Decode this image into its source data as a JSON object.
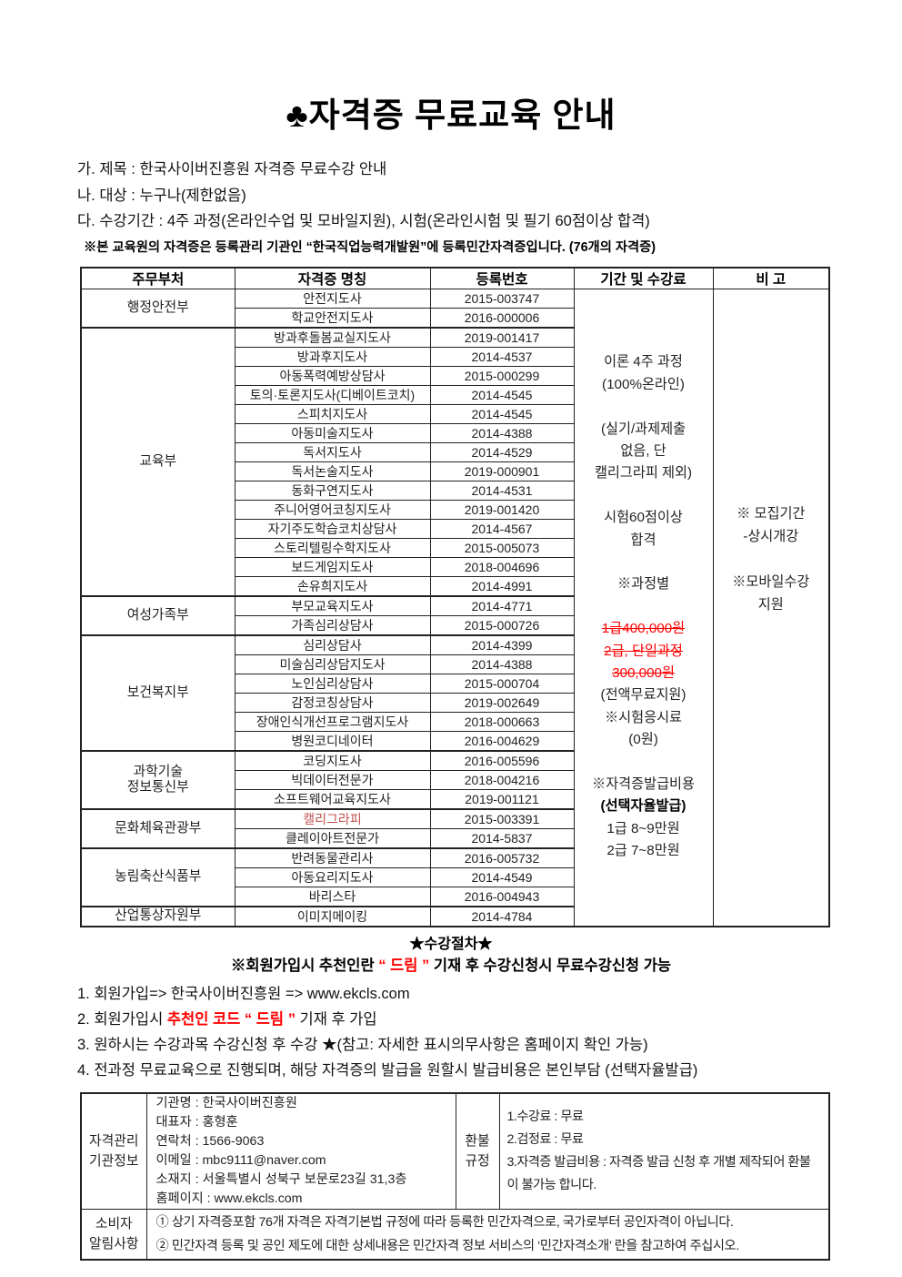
{
  "page": {
    "title_symbol": "♣",
    "title_text": "자격증 무료교육 안내"
  },
  "intro": {
    "lines": [
      "가. 제목 : 한국사이버진흥원 자격증 무료수강 안내",
      "나. 대상 : 누구나(제한없음)",
      "다. 수강기간 : 4주 과정(온라인수업 및 모바일지원), 시험(온라인시험 및 필기 60점이상 합격)"
    ],
    "notice": "※본 교육원의 자격증은 등록관리 기관인 “한국직업능력개발원”에 등록민간자격증입니다. (76개의 자격증)"
  },
  "cert_table": {
    "headers": [
      "주무부처",
      "자격증 명칭",
      "등록번호",
      "기간 및 수강료",
      "비 고"
    ],
    "groups": [
      {
        "ministry": [
          "행정안전부"
        ],
        "rows": [
          {
            "name": "안전지도사",
            "reg": "2015-003747"
          },
          {
            "name": "학교안전지도사",
            "reg": "2016-000006"
          }
        ]
      },
      {
        "ministry": [
          "교육부"
        ],
        "rows": [
          {
            "name": "방과후돌봄교실지도사",
            "reg": "2019-001417"
          },
          {
            "name": "방과후지도사",
            "reg": "2014-4537"
          },
          {
            "name": "아동폭력예방상담사",
            "reg": "2015-000299"
          },
          {
            "name": "토의·토론지도사(디베이트코치)",
            "reg": "2014-4545"
          },
          {
            "name": "스피치지도사",
            "reg": "2014-4545"
          },
          {
            "name": "아동미술지도사",
            "reg": "2014-4388"
          },
          {
            "name": "독서지도사",
            "reg": "2014-4529"
          },
          {
            "name": "독서논술지도사",
            "reg": "2019-000901"
          },
          {
            "name": "동화구연지도사",
            "reg": "2014-4531"
          },
          {
            "name": "주니어영어코칭지도사",
            "reg": "2019-001420"
          },
          {
            "name": "자기주도학습코치상담사",
            "reg": "2014-4567"
          },
          {
            "name": "스토리텔링수학지도사",
            "reg": "2015-005073"
          },
          {
            "name": "보드게임지도사",
            "reg": "2018-004696"
          },
          {
            "name": "손유희지도사",
            "reg": "2014-4991"
          }
        ]
      },
      {
        "ministry": [
          "여성가족부"
        ],
        "rows": [
          {
            "name": "부모교육지도사",
            "reg": "2014-4771"
          },
          {
            "name": "가족심리상담사",
            "reg": "2015-000726"
          }
        ]
      },
      {
        "ministry": [
          "보건복지부"
        ],
        "rows": [
          {
            "name": "심리상담사",
            "reg": "2014-4399"
          },
          {
            "name": "미술심리상담지도사",
            "reg": "2014-4388"
          },
          {
            "name": "노인심리상담사",
            "reg": "2015-000704"
          },
          {
            "name": "감정코칭상담사",
            "reg": "2019-002649"
          },
          {
            "name": "장애인식개선프로그램지도사",
            "reg": "2018-000663"
          },
          {
            "name": "병원코디네이터",
            "reg": "2016-004629"
          }
        ]
      },
      {
        "ministry": [
          "과학기술",
          "정보통신부"
        ],
        "rows": [
          {
            "name": "코딩지도사",
            "reg": "2016-005596"
          },
          {
            "name": "빅데이터전문가",
            "reg": "2018-004216"
          },
          {
            "name": "소프트웨어교육지도사",
            "reg": "2019-001121"
          }
        ]
      },
      {
        "ministry": [
          "문화체육관광부"
        ],
        "rows": [
          {
            "name": "캘리그라피",
            "reg": "2015-003391",
            "red": true
          },
          {
            "name": "클레이아트전문가",
            "reg": "2014-5837"
          }
        ]
      },
      {
        "ministry": [
          "농림축산식품부"
        ],
        "rows": [
          {
            "name": "반려동물관리사",
            "reg": "2016-005732"
          },
          {
            "name": "아동요리지도사",
            "reg": "2014-4549"
          },
          {
            "name": "바리스타",
            "reg": "2016-004943"
          }
        ]
      },
      {
        "ministry": [
          "산업통상자원부"
        ],
        "rows": [
          {
            "name": "이미지메이킹",
            "reg": "2014-4784"
          }
        ]
      }
    ],
    "fee_lines": [
      {
        "t": "이론 4주 과정"
      },
      {
        "t": "(100%온라인)"
      },
      {
        "t": ""
      },
      {
        "t": "(실기/과제제출"
      },
      {
        "t": "없음, 단"
      },
      {
        "t": "캘리그라피 제외)"
      },
      {
        "t": ""
      },
      {
        "t": "시험60점이상"
      },
      {
        "t": "합격"
      },
      {
        "t": ""
      },
      {
        "t": "※과정별"
      },
      {
        "t": ""
      },
      {
        "t": "1급400,000원",
        "s": "strike"
      },
      {
        "t": "2급, 단일과정",
        "s": "strike"
      },
      {
        "t": "300,000원",
        "s": "strike"
      },
      {
        "t": "(전액무료지원)"
      },
      {
        "t": "※시험응시료"
      },
      {
        "t": "(0원)"
      },
      {
        "t": ""
      },
      {
        "t": "※자격증발급비용"
      },
      {
        "t": "(선택자율발급)",
        "s": "boldline"
      },
      {
        "t": "1급 8~9만원"
      },
      {
        "t": "2급 7~8만원"
      }
    ],
    "remark_lines": [
      {
        "t": "※ 모집기간"
      },
      {
        "t": "-상시개강"
      },
      {
        "t": ""
      },
      {
        "t": "※모바일수강"
      },
      {
        "t": "지원"
      }
    ]
  },
  "procedure": {
    "heading": "★수강절차★",
    "subheading": [
      {
        "t": "※회원가입시 추천인란 "
      },
      {
        "t": "“ 드림 ”",
        "s": "red"
      },
      {
        "t": " 기재 후 수강신청시 무료수강신청 가능"
      }
    ],
    "steps": [
      [
        {
          "t": "1. 회원가입=> 한국사이버진흥원 => www.ekcls.com"
        }
      ],
      [
        {
          "t": "2. 회원가입시 "
        },
        {
          "t": "추천인 코드 “ 드림 ”",
          "s": "redbold"
        },
        {
          "t": " 기재 후 가입"
        }
      ],
      [
        {
          "t": "3. 원하시는 수강과목 수강신청 후 수강 ★(참고: 자세한 표시의무사항은 홈페이지 확인 가능)"
        }
      ],
      [
        {
          "t": "4. 전과정 무료교육으로 진행되며, 해당 자격증의 발급을 원할시 발급비용은 본인부담 (선택자율발급)"
        }
      ]
    ]
  },
  "info_table": {
    "org_label": [
      "자격관리",
      "기관정보"
    ],
    "org_lines": [
      "기관명 : 한국사이버진흥원",
      "대표자 : 홍형훈",
      "연락처 : 1566-9063",
      "이메일 : mbc9111@naver.com",
      "소재지 : 서울특별시 성북구 보문로23길 31,3층",
      "홈페이지 : www.ekcls.com"
    ],
    "refund_label": [
      "환불",
      "규정"
    ],
    "refund_lines": [
      "1.수강료 : 무료",
      "2.검정료 : 무료",
      "3.자격증 발급비용 : 자격증 발급 신청 후 개별 제작되어 환불이 불가능 합니다."
    ],
    "consumer_label": [
      "소비자",
      "알림사항"
    ],
    "consumer_lines": [
      "① 상기 자격증포함 76개 자격은 자격기본법 규정에 따라 등록한 민간자격으로, 국가로부터 공인자격이 아닙니다.",
      "② 민간자격 등록 및 공인 제도에 대한 상세내용은 민간자격 정보 서비스의 ‘민간자격소개’ 란을 참고하여 주십시오."
    ]
  },
  "colors": {
    "red": "#ff0000",
    "calligraphy_red": "#c0504d",
    "border": "#222222"
  }
}
